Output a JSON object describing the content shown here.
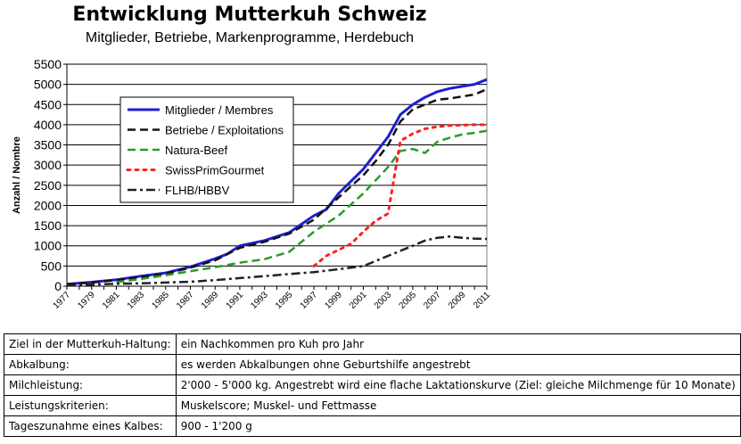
{
  "chart_data": {
    "type": "line",
    "title": "Entwicklung Mutterkuh Schweiz",
    "subtitle": "Mitglieder, Betriebe, Markenprogramme, Herdebuch",
    "xlabel": "",
    "ylabel": "Anzahl / Nombre",
    "ylim": [
      0,
      5500
    ],
    "yticks": [
      "0",
      "500",
      "1000",
      "1500",
      "2000",
      "2500",
      "3000",
      "3500",
      "4000",
      "4500",
      "5000",
      "5500"
    ],
    "xlim": [
      1977,
      2011
    ],
    "xticks": [
      "1977",
      "1979",
      "1981",
      "1983",
      "1985",
      "1987",
      "1989",
      "1991",
      "1993",
      "1995",
      "1997",
      "1999",
      "2001",
      "2003",
      "2005",
      "2007",
      "2009",
      "2011"
    ],
    "grid": true,
    "legend_position": "top-left",
    "series": [
      {
        "name": "Mitglieder / Membres",
        "color": "#1f1fd0",
        "style": "solid",
        "x": [
          1977,
          1979,
          1981,
          1983,
          1985,
          1987,
          1989,
          1990,
          1991,
          1993,
          1995,
          1997,
          1998,
          1999,
          2000,
          2001,
          2002,
          2003,
          2004,
          2005,
          2006,
          2007,
          2008,
          2009,
          2010,
          2011
        ],
        "values": [
          50,
          100,
          160,
          250,
          330,
          480,
          680,
          800,
          1000,
          1130,
          1330,
          1750,
          1900,
          2300,
          2600,
          2900,
          3300,
          3700,
          4250,
          4500,
          4680,
          4820,
          4900,
          4950,
          5000,
          5120
        ]
      },
      {
        "name": "Betriebe / Exploitations",
        "color": "#111111",
        "style": "dashed",
        "x": [
          1977,
          1979,
          1981,
          1983,
          1985,
          1987,
          1989,
          1991,
          1993,
          1995,
          1997,
          1999,
          2001,
          2002,
          2003,
          2004,
          2005,
          2006,
          2007,
          2008,
          2009,
          2010,
          2011
        ],
        "values": [
          50,
          90,
          150,
          230,
          310,
          460,
          640,
          950,
          1100,
          1300,
          1650,
          2200,
          2750,
          3100,
          3500,
          4080,
          4380,
          4500,
          4620,
          4650,
          4700,
          4750,
          4880
        ]
      },
      {
        "name": "Natura-Beef",
        "color": "#2a9a2a",
        "style": "dashed",
        "x": [
          1981,
          1983,
          1985,
          1987,
          1989,
          1991,
          1993,
          1995,
          1997,
          1999,
          2001,
          2003,
          2004,
          2005,
          2006,
          2007,
          2008,
          2009,
          2010,
          2011
        ],
        "values": [
          100,
          180,
          270,
          370,
          470,
          580,
          670,
          850,
          1350,
          1750,
          2300,
          2950,
          3350,
          3400,
          3300,
          3580,
          3680,
          3760,
          3800,
          3850
        ]
      },
      {
        "name": "SwissPrimGourmet",
        "color": "#ff2020",
        "style": "dotted",
        "x": [
          1997,
          1998,
          1999,
          2000,
          2001,
          2002,
          2003,
          2004,
          2005,
          2006,
          2007,
          2008,
          2009,
          2010,
          2011
        ],
        "values": [
          500,
          750,
          900,
          1050,
          1350,
          1620,
          1800,
          3600,
          3780,
          3900,
          3950,
          3980,
          3990,
          4000,
          4000
        ]
      },
      {
        "name": "FLHB/HBBV",
        "color": "#222222",
        "style": "dashdot",
        "x": [
          1977,
          1979,
          1981,
          1983,
          1985,
          1987,
          1989,
          1991,
          1993,
          1995,
          1997,
          1999,
          2001,
          2003,
          2005,
          2006,
          2007,
          2008,
          2009,
          2010,
          2011
        ],
        "values": [
          30,
          40,
          60,
          70,
          90,
          110,
          150,
          200,
          250,
          300,
          350,
          420,
          500,
          750,
          1000,
          1130,
          1200,
          1230,
          1200,
          1180,
          1170
        ]
      }
    ]
  },
  "info_table": {
    "rows": [
      {
        "label": "Ziel in der Mutterkuh-Haltung:",
        "value": "ein Nachkommen pro Kuh pro Jahr"
      },
      {
        "label": "Abkalbung:",
        "value": "es werden Abkalbungen ohne Geburtshilfe angestrebt"
      },
      {
        "label": "Milchleistung:",
        "value": "2'000 - 5'000 kg. Angestrebt wird eine flache Laktationskurve (Ziel: gleiche Milchmenge für 10 Monate)"
      },
      {
        "label": "Leistungskriterien:",
        "value": "Muskelscore; Muskel- und Fettmasse"
      },
      {
        "label": "Tageszunahme eines Kalbes:",
        "value": "900 - 1'200 g"
      }
    ]
  }
}
